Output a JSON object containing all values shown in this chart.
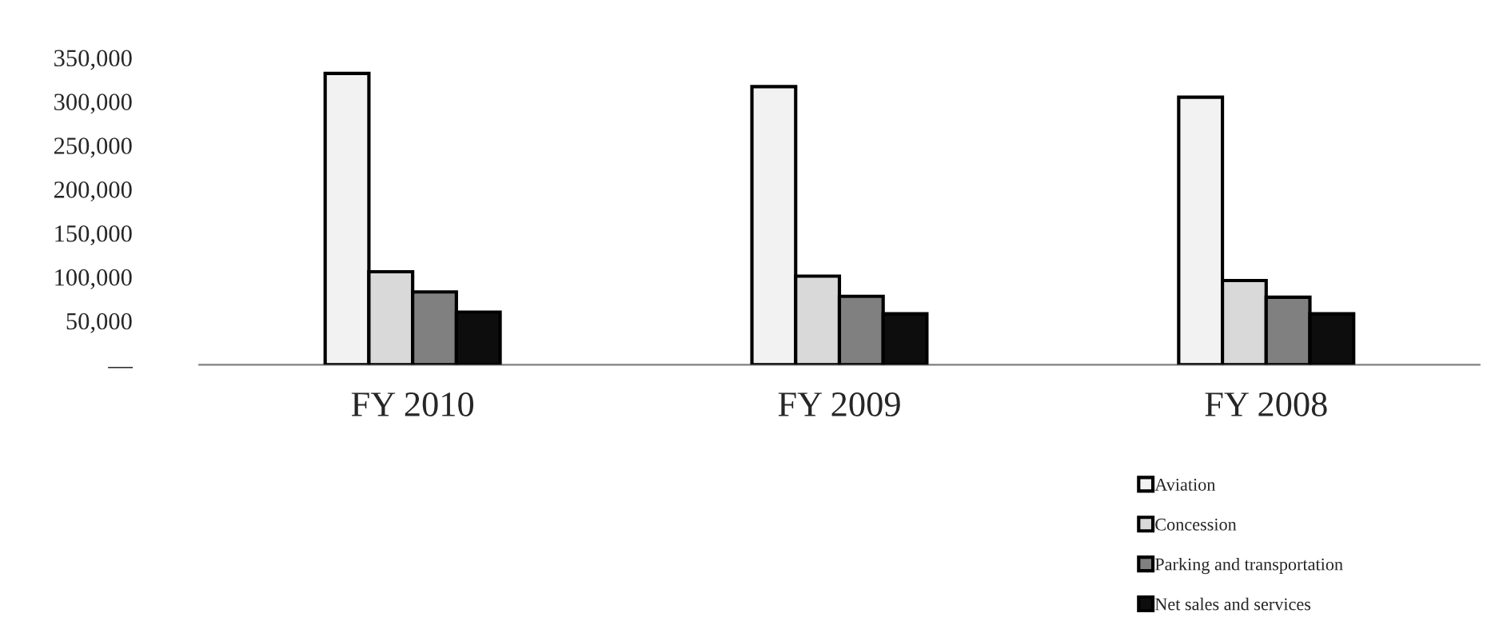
{
  "chart_data": {
    "type": "bar",
    "categories": [
      "FY 2010",
      "FY 2009",
      "FY 2008"
    ],
    "series": [
      {
        "name": "Aviation",
        "color": "#f2f2f2",
        "values": [
          332000,
          317000,
          305000
        ]
      },
      {
        "name": "Concession",
        "color": "#d9d9d9",
        "values": [
          106000,
          101000,
          96000
        ]
      },
      {
        "name": "Parking and transportation",
        "color": "#808080",
        "values": [
          83000,
          78000,
          77000
        ]
      },
      {
        "name": "Net sales and services",
        "color": "#0d0d0d",
        "values": [
          60000,
          58000,
          58000
        ]
      }
    ],
    "ylim": [
      0,
      350000
    ],
    "yticks": [
      {
        "value": 0,
        "label": "—"
      },
      {
        "value": 50000,
        "label": "50,000"
      },
      {
        "value": 100000,
        "label": "100,000"
      },
      {
        "value": 150000,
        "label": "150,000"
      },
      {
        "value": 200000,
        "label": "200,000"
      },
      {
        "value": 250000,
        "label": "250,000"
      },
      {
        "value": 300000,
        "label": "300,000"
      },
      {
        "value": 350000,
        "label": "350,000"
      }
    ],
    "grid": false,
    "legend": "bottom right"
  }
}
